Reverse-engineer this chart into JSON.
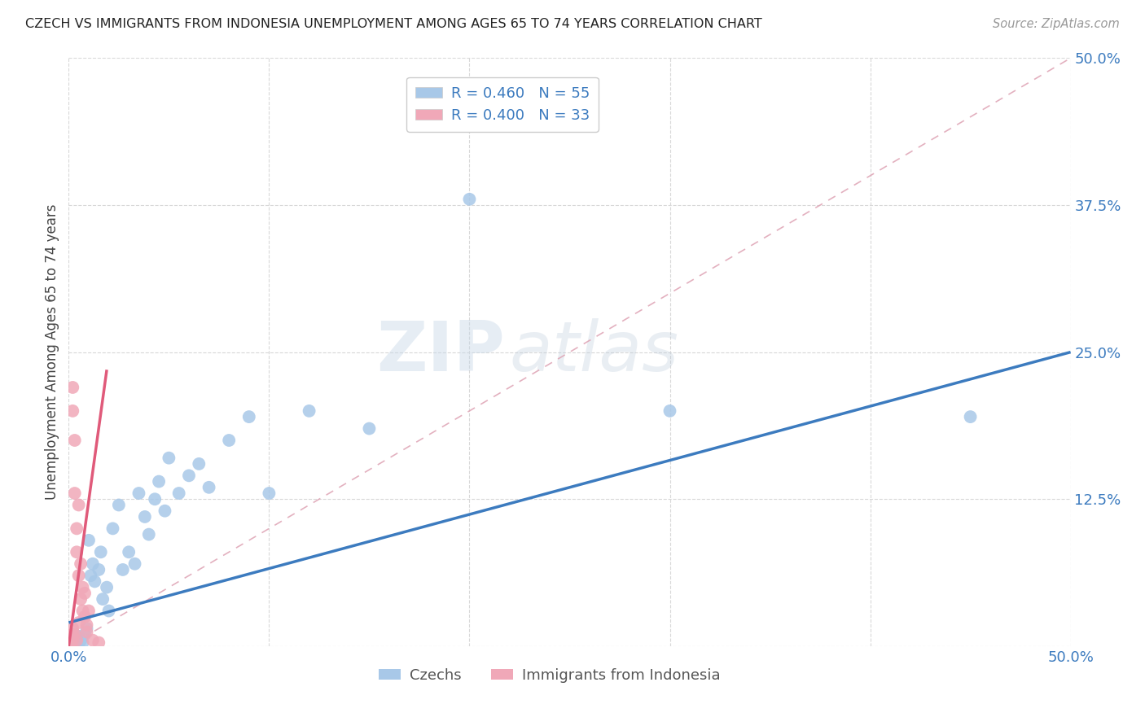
{
  "title": "CZECH VS IMMIGRANTS FROM INDONESIA UNEMPLOYMENT AMONG AGES 65 TO 74 YEARS CORRELATION CHART",
  "source": "Source: ZipAtlas.com",
  "ylabel": "Unemployment Among Ages 65 to 74 years",
  "xlim": [
    0,
    0.5
  ],
  "ylim": [
    0,
    0.5
  ],
  "xtick_positions": [
    0.0,
    0.1,
    0.2,
    0.3,
    0.4,
    0.5
  ],
  "xticklabels": [
    "0.0%",
    "",
    "",
    "",
    "",
    "50.0%"
  ],
  "ytick_positions": [
    0.0,
    0.125,
    0.25,
    0.375,
    0.5
  ],
  "yticklabels": [
    "",
    "12.5%",
    "25.0%",
    "37.5%",
    "50.0%"
  ],
  "blue_color": "#3c7bbf",
  "pink_color": "#e05a7a",
  "blue_scatter_color": "#a8c8e8",
  "pink_scatter_color": "#f0a8b8",
  "ref_line_color": "#e0a8b8",
  "czechs_x": [
    0.001,
    0.001,
    0.001,
    0.001,
    0.001,
    0.002,
    0.002,
    0.002,
    0.002,
    0.002,
    0.003,
    0.003,
    0.003,
    0.003,
    0.004,
    0.004,
    0.005,
    0.005,
    0.006,
    0.007,
    0.008,
    0.009,
    0.01,
    0.011,
    0.012,
    0.013,
    0.015,
    0.016,
    0.017,
    0.019,
    0.02,
    0.022,
    0.025,
    0.027,
    0.03,
    0.033,
    0.035,
    0.038,
    0.04,
    0.043,
    0.045,
    0.048,
    0.05,
    0.055,
    0.06,
    0.065,
    0.07,
    0.08,
    0.09,
    0.1,
    0.12,
    0.15,
    0.2,
    0.3,
    0.45
  ],
  "czechs_y": [
    0.002,
    0.004,
    0.001,
    0.003,
    0.005,
    0.002,
    0.006,
    0.003,
    0.008,
    0.001,
    0.004,
    0.007,
    0.002,
    0.01,
    0.003,
    0.006,
    0.002,
    0.008,
    0.005,
    0.003,
    0.01,
    0.015,
    0.09,
    0.06,
    0.07,
    0.055,
    0.065,
    0.08,
    0.04,
    0.05,
    0.03,
    0.1,
    0.12,
    0.065,
    0.08,
    0.07,
    0.13,
    0.11,
    0.095,
    0.125,
    0.14,
    0.115,
    0.16,
    0.13,
    0.145,
    0.155,
    0.135,
    0.175,
    0.195,
    0.13,
    0.2,
    0.185,
    0.38,
    0.2,
    0.195
  ],
  "indonesia_x": [
    0.001,
    0.001,
    0.001,
    0.001,
    0.001,
    0.001,
    0.001,
    0.001,
    0.002,
    0.002,
    0.002,
    0.002,
    0.002,
    0.003,
    0.003,
    0.003,
    0.004,
    0.004,
    0.004,
    0.005,
    0.005,
    0.005,
    0.006,
    0.006,
    0.007,
    0.007,
    0.008,
    0.008,
    0.009,
    0.009,
    0.01,
    0.012,
    0.015
  ],
  "indonesia_y": [
    0.002,
    0.005,
    0.001,
    0.008,
    0.003,
    0.006,
    0.004,
    0.007,
    0.2,
    0.22,
    0.01,
    0.005,
    0.015,
    0.175,
    0.13,
    0.01,
    0.1,
    0.08,
    0.005,
    0.12,
    0.06,
    0.02,
    0.07,
    0.04,
    0.05,
    0.03,
    0.025,
    0.045,
    0.018,
    0.012,
    0.03,
    0.005,
    0.003
  ],
  "blue_line_x0": 0.0,
  "blue_line_y0": 0.02,
  "blue_line_x1": 0.5,
  "blue_line_y1": 0.25,
  "pink_line_x0": 0.0,
  "pink_line_y0": 0.0,
  "pink_line_x1": 0.019,
  "pink_line_y1": 0.235,
  "ref_line_x0": 0.0,
  "ref_line_y0": 0.0,
  "ref_line_x1": 0.5,
  "ref_line_y1": 0.5,
  "watermark_zip": "ZIP",
  "watermark_atlas": "atlas",
  "background_color": "#ffffff",
  "grid_color": "#d8d8d8"
}
